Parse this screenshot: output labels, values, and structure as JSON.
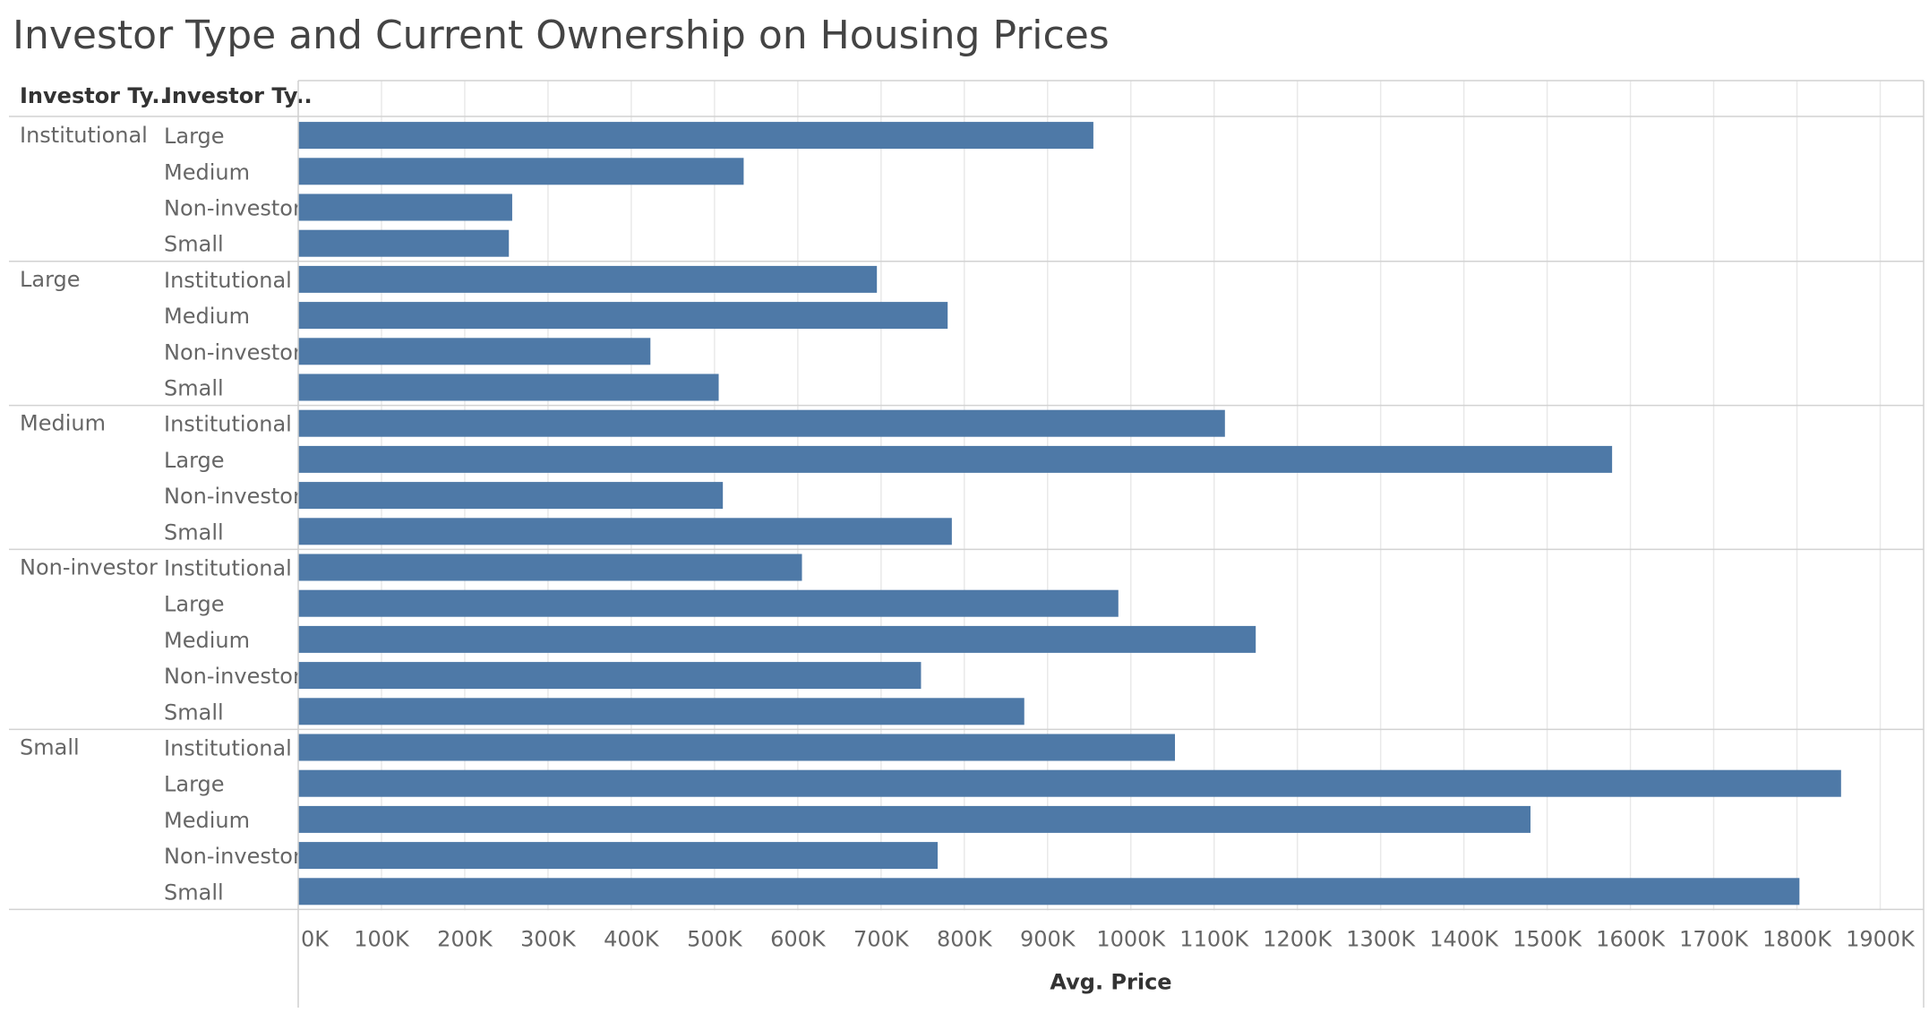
{
  "chart_data": {
    "type": "bar",
    "orientation": "horizontal",
    "title": "Investor Type and Current Ownership on Housing Prices",
    "row_header_1": "Investor Ty..",
    "row_header_2": "Investor Ty..",
    "xlabel": "Avg. Price",
    "xlim": [
      0,
      1950000
    ],
    "x_ticks": [
      0,
      100000,
      200000,
      300000,
      400000,
      500000,
      600000,
      700000,
      800000,
      900000,
      1000000,
      1100000,
      1200000,
      1300000,
      1400000,
      1500000,
      1600000,
      1700000,
      1800000,
      1900000
    ],
    "x_tick_labels": [
      "0K",
      "100K",
      "200K",
      "300K",
      "400K",
      "500K",
      "600K",
      "700K",
      "800K",
      "900K",
      "1000K",
      "1100K",
      "1200K",
      "1300K",
      "1400K",
      "1500K",
      "1600K",
      "1700K",
      "1800K",
      "1900K"
    ],
    "grid": true,
    "bar_color": "#4e79a7",
    "groups": [
      {
        "name": "Institutional",
        "rows": [
          {
            "label": "Large",
            "value": 955000
          },
          {
            "label": "Medium",
            "value": 535000
          },
          {
            "label": "Non-investor",
            "value": 257000
          },
          {
            "label": "Small",
            "value": 253000
          }
        ]
      },
      {
        "name": "Large",
        "rows": [
          {
            "label": "Institutional",
            "value": 695000
          },
          {
            "label": "Medium",
            "value": 780000
          },
          {
            "label": "Non-investor",
            "value": 423000
          },
          {
            "label": "Small",
            "value": 505000
          }
        ]
      },
      {
        "name": "Medium",
        "rows": [
          {
            "label": "Institutional",
            "value": 1113000
          },
          {
            "label": "Large",
            "value": 1578000
          },
          {
            "label": "Non-investor",
            "value": 510000
          },
          {
            "label": "Small",
            "value": 785000
          }
        ]
      },
      {
        "name": "Non-investor",
        "rows": [
          {
            "label": "Institutional",
            "value": 605000
          },
          {
            "label": "Large",
            "value": 985000
          },
          {
            "label": "Medium",
            "value": 1150000
          },
          {
            "label": "Non-investor",
            "value": 748000
          },
          {
            "label": "Small",
            "value": 872000
          }
        ]
      },
      {
        "name": "Small",
        "rows": [
          {
            "label": "Institutional",
            "value": 1053000
          },
          {
            "label": "Large",
            "value": 1853000
          },
          {
            "label": "Medium",
            "value": 1480000
          },
          {
            "label": "Non-investor",
            "value": 768000
          },
          {
            "label": "Small",
            "value": 1803000
          }
        ]
      }
    ]
  }
}
